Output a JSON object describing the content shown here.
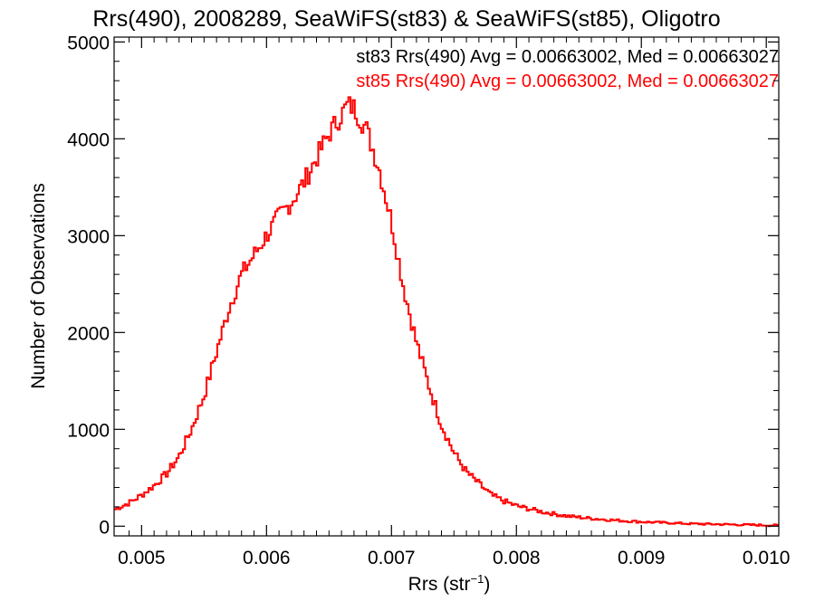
{
  "chart_data": {
    "type": "histogram",
    "title": "Rrs(490), 2008289, SeaWiFS(st83) & SeaWiFS(st85), Oligotro",
    "xlabel": "Rrs (str",
    "xlabel_sup": "−1",
    "xlabel_close": ")",
    "ylabel": "Number of Observations",
    "xlim": [
      0.00478,
      0.0101
    ],
    "ylim": [
      -100,
      5050
    ],
    "x_ticks": [
      0.005,
      0.006,
      0.007,
      0.008,
      0.009,
      0.01
    ],
    "x_tick_labels": [
      "0.005",
      "0.006",
      "0.007",
      "0.008",
      "0.009",
      "0.010"
    ],
    "y_ticks": [
      0,
      1000,
      2000,
      3000,
      4000,
      5000
    ],
    "y_tick_labels": [
      "0",
      "1000",
      "2000",
      "3000",
      "4000",
      "5000"
    ],
    "grid": false,
    "legend_placement": "top-right",
    "legend": [
      {
        "text": "st83 Rrs(490) Avg = 0.00663002, Med = 0.00663027",
        "color": "#000000"
      },
      {
        "text": "st85 Rrs(490) Avg = 0.00663002, Med = 0.00663027",
        "color": "#ff0000"
      }
    ],
    "series": [
      {
        "name": "st85",
        "color": "#ff0000",
        "x": [
          0.00478,
          0.0049,
          0.005,
          0.0051,
          0.0052,
          0.0053,
          0.0054,
          0.0055,
          0.0056,
          0.0057,
          0.0058,
          0.0059,
          0.006,
          0.0061,
          0.0062,
          0.0063,
          0.0064,
          0.0065,
          0.0066,
          0.00665,
          0.0067,
          0.0068,
          0.0069,
          0.007,
          0.0071,
          0.0072,
          0.0073,
          0.0074,
          0.0075,
          0.0076,
          0.0077,
          0.0078,
          0.0079,
          0.008,
          0.0082,
          0.0084,
          0.0086,
          0.0088,
          0.009,
          0.0092,
          0.0094,
          0.0096,
          0.0098,
          0.01,
          0.0101
        ],
        "y": [
          170,
          240,
          320,
          420,
          540,
          720,
          1000,
          1350,
          1800,
          2250,
          2600,
          2800,
          3000,
          3200,
          3350,
          3550,
          3800,
          4050,
          4250,
          4350,
          4320,
          4100,
          3700,
          3150,
          2450,
          1900,
          1450,
          1050,
          760,
          560,
          440,
          320,
          260,
          210,
          150,
          105,
          80,
          60,
          45,
          35,
          25,
          20,
          15,
          10,
          8
        ]
      }
    ]
  }
}
